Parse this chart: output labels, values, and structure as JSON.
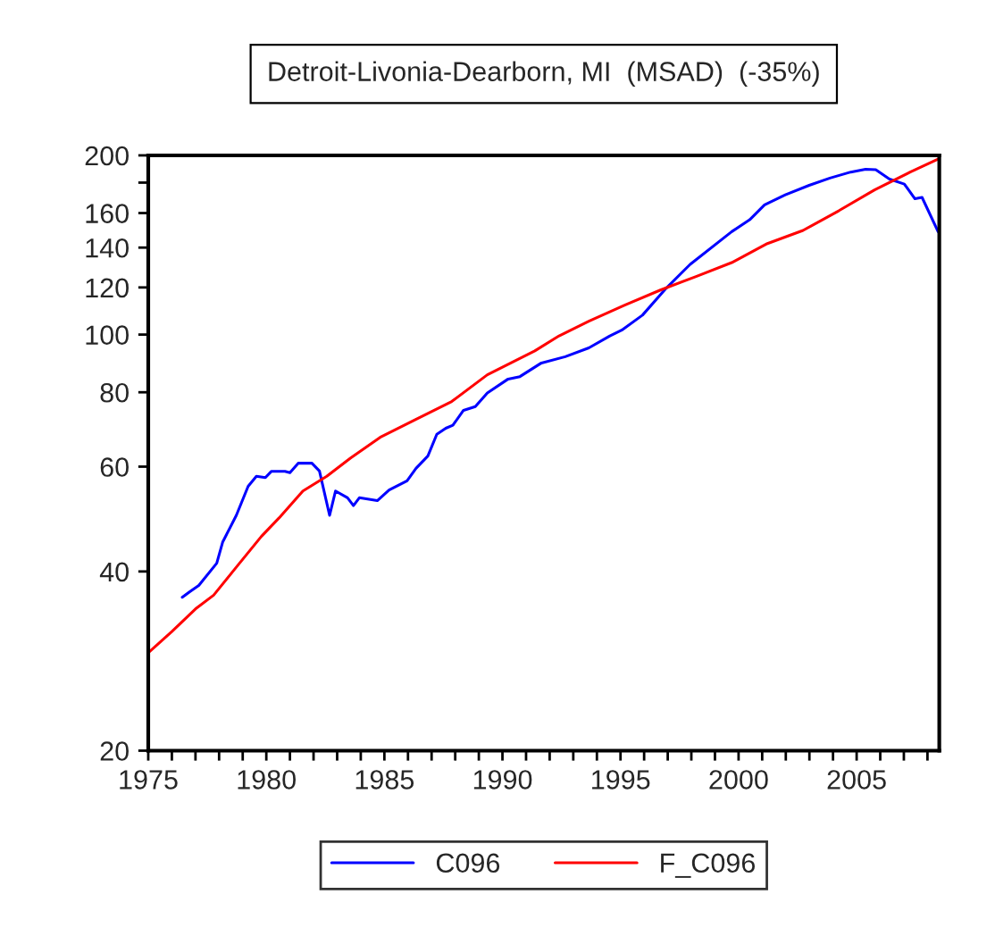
{
  "chart_data": {
    "type": "line",
    "title": "Detroit-Livonia-Dearborn, MI  (MSAD)  (-35%)",
    "log": "y",
    "grid": false,
    "legend": "bottom",
    "xlim": [
      1975,
      2008.5
    ],
    "ylim": [
      20,
      200
    ],
    "xticks": [
      1975,
      {
        "value": 1976,
        "label": null
      },
      {
        "value": 1977,
        "label": null
      },
      {
        "value": 1978,
        "label": null
      },
      {
        "value": 1979,
        "label": null
      },
      1980,
      {
        "value": 1981,
        "label": null
      },
      {
        "value": 1982,
        "label": null
      },
      {
        "value": 1983,
        "label": null
      },
      {
        "value": 1984,
        "label": null
      },
      1985,
      {
        "value": 1986,
        "label": null
      },
      {
        "value": 1987,
        "label": null
      },
      {
        "value": 1988,
        "label": null
      },
      {
        "value": 1989,
        "label": null
      },
      1990,
      {
        "value": 1991,
        "label": null
      },
      {
        "value": 1992,
        "label": null
      },
      {
        "value": 1993,
        "label": null
      },
      {
        "value": 1994,
        "label": null
      },
      1995,
      {
        "value": 1996,
        "label": null
      },
      {
        "value": 1997,
        "label": null
      },
      {
        "value": 1998,
        "label": null
      },
      {
        "value": 1999,
        "label": null
      },
      2000,
      {
        "value": 2001,
        "label": null
      },
      {
        "value": 2002,
        "label": null
      },
      {
        "value": 2003,
        "label": null
      },
      {
        "value": 2004,
        "label": null
      },
      2005,
      {
        "value": 2006,
        "label": null
      },
      {
        "value": 2007,
        "label": null
      },
      {
        "value": 2008,
        "label": null
      }
    ],
    "yticks": [
      20,
      40,
      60,
      80,
      100,
      120,
      140,
      160,
      {
        "value": 180,
        "label": null
      },
      200
    ],
    "series": [
      {
        "name": "C096",
        "color": "#0000ff",
        "x": [
          1976.44,
          1976.76,
          1977.14,
          1977.9,
          1978.15,
          1978.73,
          1979.23,
          1979.58,
          1979.96,
          1980.21,
          1980.79,
          1981.0,
          1981.35,
          1981.93,
          1982.25,
          1982.68,
          1982.93,
          1983.44,
          1983.69,
          1983.94,
          1984.7,
          1985.2,
          1985.96,
          1986.34,
          1986.84,
          1987.22,
          1987.6,
          1987.9,
          1988.35,
          1988.85,
          1989.36,
          1990.24,
          1990.74,
          1991.65,
          1992.66,
          1993.66,
          1994.55,
          1995.05,
          1995.93,
          1996.94,
          1997.95,
          1999.71,
          2000.47,
          2001.1,
          2001.98,
          2002.99,
          2003.87,
          2004.75,
          2005.38,
          2005.81,
          2006.39,
          2007.02,
          2007.47,
          2007.77,
          2008.45
        ],
        "values": [
          36.2,
          37.0,
          37.9,
          41.3,
          44.8,
          49.7,
          55.6,
          57.8,
          57.5,
          58.9,
          58.9,
          58.6,
          60.8,
          60.8,
          59.0,
          49.7,
          54.6,
          53.2,
          51.6,
          53.2,
          52.6,
          54.8,
          56.8,
          59.6,
          62.5,
          68.0,
          69.6,
          70.4,
          74.6,
          75.7,
          79.8,
          84.2,
          85.0,
          89.6,
          91.8,
          95.0,
          99.5,
          101.7,
          107.8,
          119.7,
          131.2,
          148.9,
          155.9,
          165.2,
          171.7,
          178.1,
          183.2,
          187.5,
          189.6,
          189.2,
          182.5,
          179.0,
          169.1,
          170.0,
          148.9
        ]
      },
      {
        "name": "F_C096",
        "color": "#ff0000",
        "x": [
          1975.0,
          1976.0,
          1977.0,
          1977.77,
          1978.78,
          1979.79,
          1980.54,
          1981.55,
          1982.56,
          1983.56,
          1984.82,
          1986.33,
          1987.85,
          1989.36,
          1991.37,
          1992.4,
          1993.66,
          1995.18,
          1996.69,
          1998.2,
          1999.71,
          2001.22,
          2002.73,
          2004.24,
          2005.76,
          2007.27,
          2008.45
        ],
        "values": [
          29.2,
          31.7,
          34.6,
          36.5,
          40.9,
          45.8,
          49.2,
          54.6,
          57.8,
          62.0,
          67.2,
          72.0,
          77.2,
          85.6,
          93.9,
          99.5,
          105.3,
          112.1,
          118.8,
          125.2,
          132.1,
          142.2,
          149.6,
          161.4,
          175.0,
          187.5,
          197.2
        ]
      }
    ]
  }
}
